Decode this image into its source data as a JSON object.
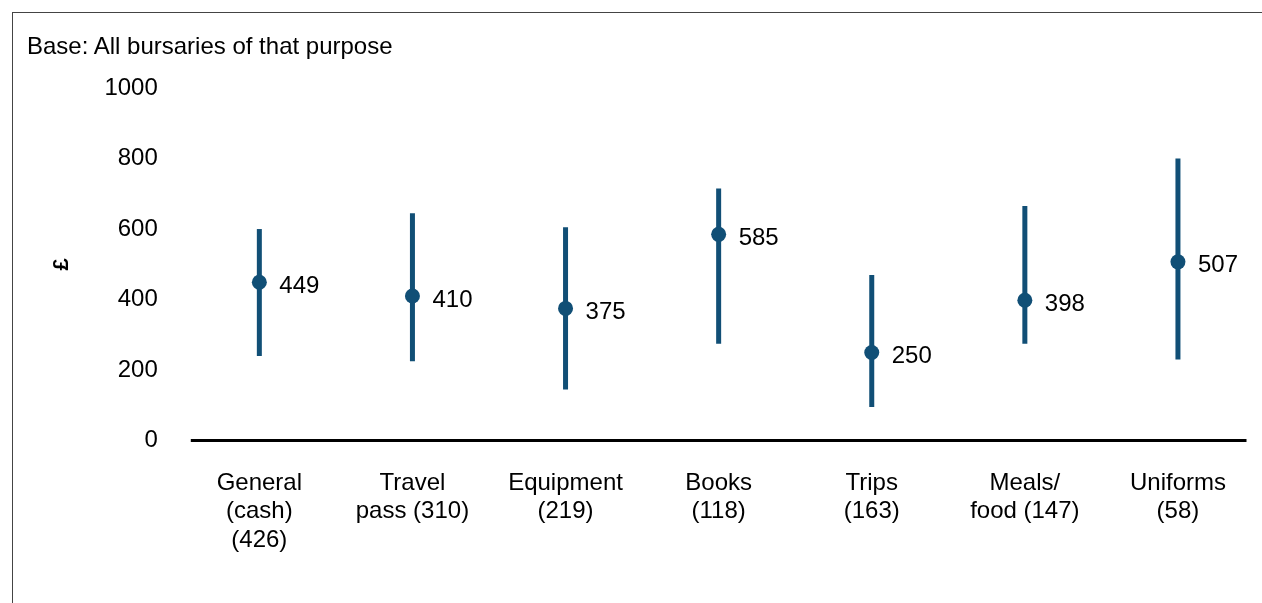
{
  "chart_data": {
    "type": "scatter",
    "ylabel": "£",
    "annotations": [
      "Base: All bursaries of that purpose"
    ],
    "categories": [
      "General\n(cash)\n(426)",
      "Travel\npass (310)",
      "Equipment\n(219)",
      "Books\n(118)",
      "Trips\n(163)",
      "Meals/\nfood (147)",
      "Uniforms\n(58)"
    ],
    "series": [
      {
        "color": "#114f76",
        "values": [
          449,
          410,
          375,
          585,
          250,
          398,
          507
        ],
        "errors": [
          [
            240,
            600
          ],
          [
            225,
            645
          ],
          [
            145,
            605
          ],
          [
            275,
            715
          ],
          [
            95,
            470
          ],
          [
            275,
            665
          ],
          [
            230,
            800
          ]
        ]
      }
    ],
    "ylim": [
      0,
      1000
    ],
    "yticks": [
      0,
      200,
      400,
      600,
      800,
      1000
    ],
    "data_labels": true,
    "marker": "circle",
    "grid": false,
    "legend": false
  }
}
